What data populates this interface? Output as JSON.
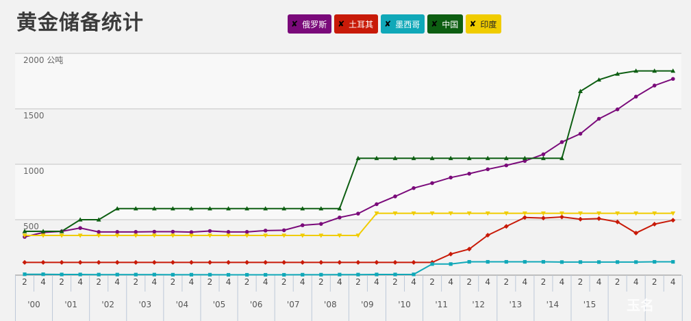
{
  "title": "黄金储备统计",
  "watermark": "玉名",
  "chart_data": {
    "type": "line",
    "title": "黄金储备统计",
    "ylabel": "公吨",
    "ylim": [
      0,
      2000
    ],
    "yticks": [
      500,
      1000,
      1500,
      2000
    ],
    "ytick_labels": [
      "500",
      "1000",
      "1500",
      "2000 公吨"
    ],
    "grid": true,
    "legend_position": "top",
    "x_labels": [
      "2",
      "4",
      "2",
      "4",
      "2",
      "4",
      "2",
      "4",
      "2",
      "4",
      "2",
      "4",
      "2",
      "4",
      "2",
      "4",
      "2",
      "4",
      "2",
      "4",
      "2",
      "4",
      "2",
      "4",
      "2",
      "4",
      "2",
      "4",
      "2",
      "4",
      "2",
      "4",
      "2",
      "4",
      "2",
      "4"
    ],
    "x": [
      0,
      1,
      2,
      3,
      4,
      5,
      6,
      7,
      8,
      9,
      10,
      11,
      12,
      13,
      14,
      15,
      16,
      17,
      18,
      19,
      20,
      21,
      22,
      23,
      24,
      25,
      26,
      27,
      28,
      29,
      30,
      31,
      32,
      33,
      34,
      35
    ],
    "years": [
      "'00",
      "'01",
      "'02",
      "'03",
      "'04",
      "'05",
      "'06",
      "'07",
      "'08",
      "'09",
      "'10",
      "'11",
      "'12",
      "'13",
      "'14",
      "'15"
    ],
    "series": [
      {
        "name": "俄罗斯",
        "color": "#7a0a7a",
        "marker": "circle",
        "values": [
          345,
          385,
          395,
          425,
          390,
          390,
          390,
          392,
          392,
          388,
          398,
          390,
          390,
          402,
          405,
          450,
          462,
          520,
          555,
          640,
          710,
          785,
          830,
          880,
          915,
          955,
          990,
          1030,
          1090,
          1200,
          1275,
          1410,
          1495,
          1610,
          1710,
          1770
        ]
      },
      {
        "name": "土耳其",
        "color": "#c81a08",
        "marker": "diamond",
        "values": [
          115,
          115,
          115,
          115,
          115,
          115,
          115,
          115,
          115,
          115,
          115,
          115,
          115,
          115,
          115,
          115,
          115,
          115,
          115,
          115,
          115,
          115,
          115,
          190,
          235,
          360,
          440,
          520,
          515,
          525,
          505,
          510,
          480,
          380,
          460,
          495
        ]
      },
      {
        "name": "墨西哥",
        "color": "#10a8b8",
        "marker": "square",
        "values": [
          8,
          8,
          6,
          6,
          5,
          5,
          5,
          5,
          4,
          4,
          4,
          3,
          3,
          3,
          3,
          4,
          4,
          5,
          5,
          6,
          6,
          7,
          100,
          100,
          120,
          120,
          120,
          120,
          120,
          118,
          118,
          118,
          118,
          118,
          120,
          120
        ]
      },
      {
        "name": "中国",
        "color": "#0d5e12",
        "marker": "triangle",
        "values": [
          395,
          395,
          395,
          500,
          500,
          600,
          600,
          600,
          600,
          600,
          600,
          600,
          600,
          600,
          600,
          600,
          600,
          600,
          1054,
          1054,
          1054,
          1054,
          1054,
          1054,
          1054,
          1054,
          1054,
          1054,
          1054,
          1054,
          1658,
          1762,
          1815,
          1842,
          1842,
          1842
        ]
      },
      {
        "name": "印度",
        "color": "#f0cc00",
        "marker": "triangle-down",
        "values": [
          358,
          358,
          358,
          358,
          358,
          358,
          358,
          358,
          358,
          358,
          358,
          358,
          358,
          358,
          358,
          358,
          358,
          358,
          358,
          558,
          558,
          558,
          558,
          558,
          558,
          558,
          558,
          558,
          558,
          558,
          558,
          558,
          558,
          558,
          558,
          558
        ]
      }
    ]
  }
}
